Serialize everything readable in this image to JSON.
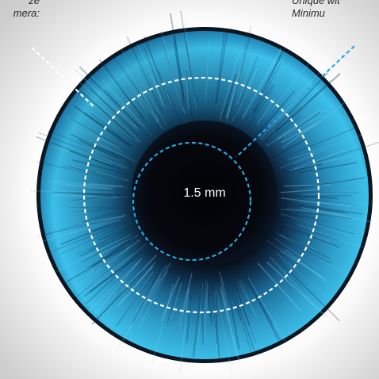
{
  "captions": {
    "left_line1": "ze",
    "left_line2": "mera:",
    "right_line1": "Unique wit",
    "right_line2": "Minimu"
  },
  "pupil_label": "1.5 mm",
  "colors": {
    "iris_light": "#3cc0ea",
    "iris_mid": "#1a6f99",
    "iris_dark": "#0b2c4a",
    "pupil": "#05070d",
    "limbal_ring": "#0b1620",
    "outer_dashed_circle": "#ffffff",
    "inner_dashed_circle": "#2aa6dd",
    "leader_left": "#ffffff",
    "leader_right": "#2aa6dd"
  }
}
